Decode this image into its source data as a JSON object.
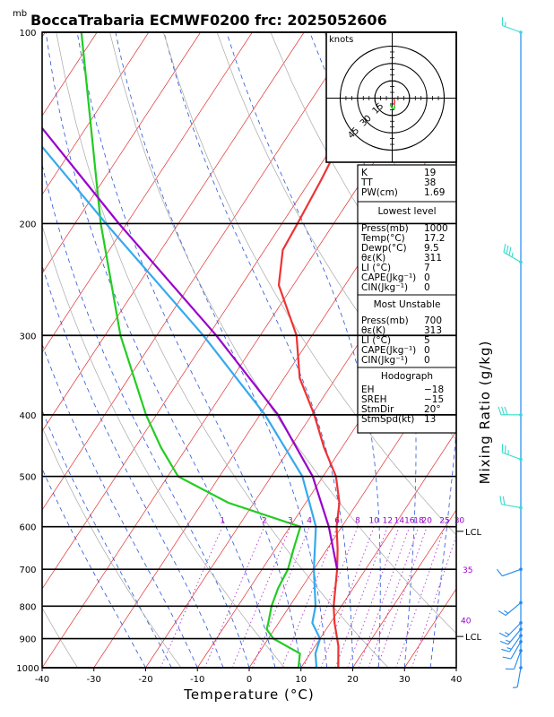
{
  "chart_data": {
    "type": "line",
    "title": "BoccaTrabaria ECMWF0200 frc: 2025052606",
    "pressure_unit": "mb",
    "xlabel": "Temperature (°C)",
    "right_label": "Mixing Ratio (g/kg)",
    "x_ticks": [
      "-40",
      "-30",
      "-20",
      "-10",
      "0",
      "10",
      "20",
      "30",
      "40"
    ],
    "x_tick_values": [
      -40,
      -30,
      -20,
      -10,
      0,
      10,
      20,
      30,
      40
    ],
    "p_ticks": [
      "100",
      "200",
      "300",
      "400",
      "500",
      "600",
      "700",
      "800",
      "900",
      "1000"
    ],
    "p_tick_values": [
      100,
      200,
      300,
      400,
      500,
      600,
      700,
      800,
      900,
      1000
    ],
    "p_range": [
      100,
      1000
    ],
    "x_range": [
      -40,
      40
    ],
    "skew_deg_per_log_p": 35,
    "isotherm_values": [
      -160,
      -150,
      -140,
      -130,
      -120,
      -110,
      -100,
      -90,
      -80,
      -70,
      -60,
      -50,
      -40,
      -30,
      -20,
      -10,
      0,
      10,
      20,
      30,
      40
    ],
    "series": [
      {
        "role": "temperature",
        "color": "#ee3333",
        "points": [
          [
            1000,
            17.2
          ],
          [
            925,
            14.5
          ],
          [
            850,
            10.8
          ],
          [
            800,
            8.5
          ],
          [
            700,
            4.5
          ],
          [
            650,
            2.0
          ],
          [
            600,
            -1.0
          ],
          [
            550,
            -3.5
          ],
          [
            500,
            -7.5
          ],
          [
            450,
            -13.5
          ],
          [
            400,
            -19.5
          ],
          [
            350,
            -27.0
          ],
          [
            300,
            -33.0
          ],
          [
            250,
            -42.8
          ],
          [
            220,
            -46.5
          ],
          [
            200,
            -47.0
          ],
          [
            170,
            -48.0
          ],
          [
            150,
            -49.0
          ],
          [
            120,
            -52.0
          ],
          [
            100,
            -57.0
          ]
        ]
      },
      {
        "role": "dewpoint",
        "color": "#22cc22",
        "points": [
          [
            1000,
            9.5
          ],
          [
            950,
            8.0
          ],
          [
            900,
            1.0
          ],
          [
            870,
            -1.5
          ],
          [
            850,
            -2.0
          ],
          [
            800,
            -3.5
          ],
          [
            750,
            -4.5
          ],
          [
            700,
            -5.0
          ],
          [
            650,
            -6.5
          ],
          [
            600,
            -8.0
          ],
          [
            550,
            -25.0
          ],
          [
            500,
            -38.0
          ],
          [
            450,
            -45.0
          ],
          [
            400,
            -52.0
          ],
          [
            300,
            -67.0
          ],
          [
            200,
            -85.0
          ],
          [
            100,
            -113.0
          ]
        ]
      },
      {
        "role": "parcel",
        "color": "#9900cc",
        "points": [
          [
            700,
            4.5
          ],
          [
            600,
            -2.5
          ],
          [
            500,
            -12.0
          ],
          [
            400,
            -26.5
          ],
          [
            300,
            -48.5
          ],
          [
            200,
            -81.5
          ],
          [
            100,
            -135.5
          ]
        ]
      },
      {
        "role": "virtual",
        "color": "#33aaee",
        "points": [
          [
            1000,
            13.0
          ],
          [
            950,
            11.0
          ],
          [
            900,
            10.0
          ],
          [
            850,
            6.5
          ],
          [
            800,
            5.0
          ],
          [
            700,
            0.0
          ],
          [
            600,
            -5.0
          ],
          [
            500,
            -14.0
          ],
          [
            400,
            -29.0
          ],
          [
            300,
            -51.0
          ],
          [
            200,
            -84.0
          ],
          [
            100,
            -139.0
          ]
        ]
      }
    ],
    "mixing_ratio_labels": [
      "1",
      "2",
      "3",
      "4",
      "6",
      "8",
      "10",
      "12",
      "14",
      "16",
      "18",
      "20",
      "25",
      "30"
    ],
    "mixing_ratio_values": [
      1,
      2,
      3,
      4,
      6,
      8,
      10,
      12,
      14,
      16,
      18,
      20,
      25,
      30
    ],
    "theta_e_labels": [
      "35",
      "40"
    ],
    "lcl_label": "LCL",
    "lcl_pressures": [
      610,
      893
    ]
  },
  "hodograph": {
    "units_label": "knots",
    "ring_labels": [
      "15",
      "30",
      "45"
    ],
    "ring_values": [
      15,
      30,
      45
    ],
    "trace": [
      [
        1.5,
        -0.5
      ],
      [
        2.0,
        -3.0
      ],
      [
        1.8,
        -6.0
      ],
      [
        2.2,
        -8.5
      ],
      [
        0.5,
        -9.5
      ],
      [
        -1.0,
        -7.0
      ],
      [
        -1.5,
        -5.5
      ]
    ],
    "trace_colors": [
      "#ee3333",
      "#ee3333",
      "#22cc22",
      "#22cc22",
      "#22cc22",
      "#22cc22"
    ]
  },
  "panel_index": [
    {
      "name": "K",
      "value": "19"
    },
    {
      "name": "TT",
      "value": "38"
    },
    {
      "name": "PW(cm)",
      "value": "1.69"
    }
  ],
  "panel_lowest": {
    "header": "Lowest level",
    "rows": [
      {
        "name": "Press(mb)",
        "value": "1000"
      },
      {
        "name": "Temp(°C)",
        "value": "17.2"
      },
      {
        "name": "Dewp(°C)",
        "value": "9.5"
      },
      {
        "name": "θε(K)",
        "value": "311"
      },
      {
        "name": "LI (°C)",
        "value": "7"
      },
      {
        "name": "CAPE(Jkg⁻¹)",
        "value": "0"
      },
      {
        "name": "CIN(Jkg⁻¹)",
        "value": "0"
      }
    ]
  },
  "panel_unstable": {
    "header": "Most Unstable",
    "rows": [
      {
        "name": "Press(mb)",
        "value": "700"
      },
      {
        "name": "θε(K)",
        "value": "313"
      },
      {
        "name": "LI (°C)",
        "value": "5"
      },
      {
        "name": "CAPE(Jkg⁻¹)",
        "value": "0"
      },
      {
        "name": "CIN(Jkg⁻¹)",
        "value": "0"
      }
    ]
  },
  "panel_hodo": {
    "header": "Hodograph",
    "rows": [
      {
        "name": "EH",
        "value": "−18"
      },
      {
        "name": "SREH",
        "value": "−15"
      },
      {
        "name": "StmDir",
        "value": "20°"
      },
      {
        "name": "StmSpd(kt)",
        "value": "13"
      }
    ]
  },
  "wind_profile": [
    {
      "p": 100,
      "dir": 290,
      "spd": 15,
      "color": "#33ddcc"
    },
    {
      "p": 230,
      "dir": 300,
      "spd": 35,
      "color": "#33ddcc"
    },
    {
      "p": 400,
      "dir": 270,
      "spd": 30,
      "color": "#33ddcc"
    },
    {
      "p": 470,
      "dir": 290,
      "spd": 25,
      "color": "#33ddcc"
    },
    {
      "p": 560,
      "dir": 280,
      "spd": 20,
      "color": "#33ddcc"
    },
    {
      "p": 700,
      "dir": 250,
      "spd": 10,
      "color": "#2288ee"
    },
    {
      "p": 790,
      "dir": 230,
      "spd": 15,
      "color": "#2288ee"
    },
    {
      "p": 850,
      "dir": 225,
      "spd": 15,
      "color": "#2288ee"
    },
    {
      "p": 870,
      "dir": 220,
      "spd": 15,
      "color": "#2288ee"
    },
    {
      "p": 890,
      "dir": 215,
      "spd": 15,
      "color": "#2288ee"
    },
    {
      "p": 910,
      "dir": 210,
      "spd": 10,
      "color": "#2288ee"
    },
    {
      "p": 940,
      "dir": 200,
      "spd": 10,
      "color": "#2288ee"
    },
    {
      "p": 1000,
      "dir": 190,
      "spd": 5,
      "color": "#2288ee"
    }
  ]
}
